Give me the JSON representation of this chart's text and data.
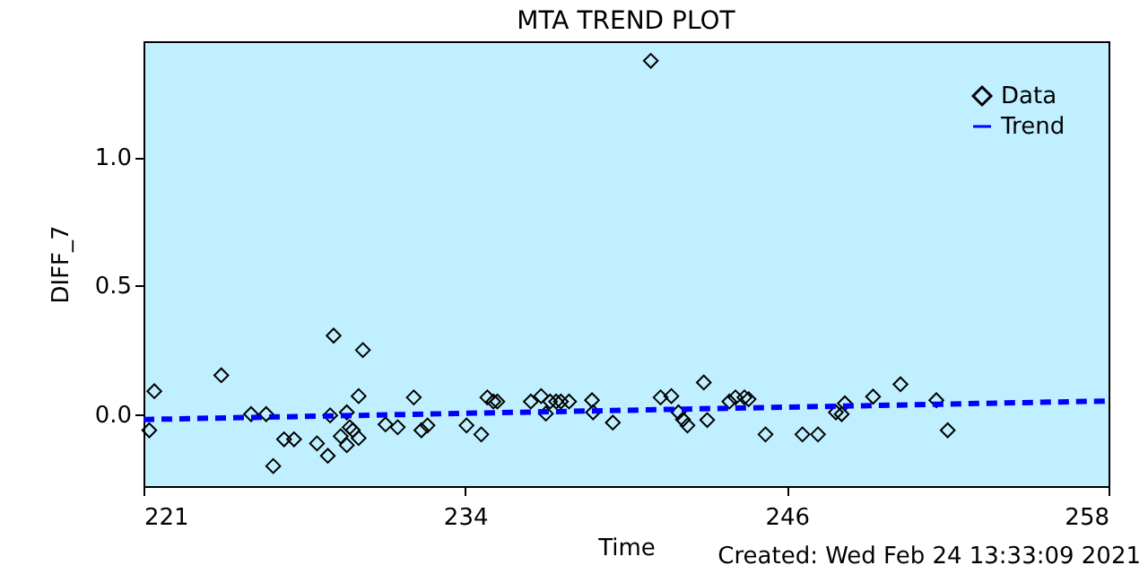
{
  "chart_data": {
    "type": "scatter",
    "title": "MTA TREND PLOT",
    "xlabel": "Time",
    "ylabel": "DIFF_7",
    "annotations": [
      "Created: Wed Feb 24 13:33:09 2021"
    ],
    "xlim": [
      221.4,
      258
    ],
    "xticks": [
      {
        "value": 221.4,
        "label": "221"
      },
      {
        "value": 233.6,
        "label": "234"
      },
      {
        "value": 245.8,
        "label": "246"
      },
      {
        "value": 258,
        "label": "258"
      }
    ],
    "ylim": [
      -0.28,
      1.45
    ],
    "yticks": [
      {
        "value": 0,
        "label": "0.0"
      },
      {
        "value": 0.5,
        "label": "0.5"
      },
      {
        "value": 1,
        "label": "1.0"
      }
    ],
    "grid": false,
    "legend": "top right",
    "series": [
      {
        "name": "Data",
        "marker": "diamond",
        "color": "#000000",
        "x": [
          221.81,
          221.62,
          224.35,
          225.48,
          226.05,
          226.73,
          227.11,
          226.32,
          227.98,
          228.39,
          228.61,
          228.48,
          228.88,
          229.11,
          229.11,
          229.22,
          229.34,
          229.56,
          229.56,
          229.72,
          230.58,
          231.04,
          231.65,
          231.94,
          232.17,
          233.65,
          234.21,
          234.44,
          234.67,
          234.82,
          236.09,
          236.48,
          236.66,
          236.82,
          237.05,
          237.23,
          237.54,
          238.41,
          238.45,
          239.2,
          240.64,
          241.01,
          241.42,
          241.69,
          241.86,
          242.03,
          242.65,
          242.78,
          243.62,
          243.85,
          244.19,
          244.35,
          244.99,
          246.39,
          246.98,
          247.66,
          247.88,
          248.0,
          249.07,
          250.11,
          251.47,
          251.9
        ],
        "values": [
          0.089,
          -0.063,
          0.151,
          0.0,
          0.0,
          -0.098,
          -0.098,
          -0.202,
          -0.114,
          -0.162,
          0.305,
          -0.005,
          -0.086,
          0.007,
          -0.121,
          -0.051,
          -0.063,
          -0.093,
          0.07,
          0.249,
          -0.04,
          -0.051,
          0.065,
          -0.063,
          -0.044,
          -0.044,
          -0.079,
          0.065,
          0.049,
          0.049,
          0.049,
          0.07,
          0.002,
          0.049,
          0.049,
          0.049,
          0.049,
          0.054,
          0.007,
          -0.033,
          1.374,
          0.065,
          0.07,
          0.007,
          -0.021,
          -0.044,
          0.123,
          -0.023,
          0.049,
          0.065,
          0.065,
          0.058,
          -0.079,
          -0.079,
          -0.079,
          0.007,
          0.0,
          0.042,
          0.068,
          0.116,
          0.054,
          -0.063
        ]
      },
      {
        "name": "Trend",
        "type": "line",
        "color": "#0000ff",
        "line_style": "dashed",
        "marker": "none",
        "x": [
          221.4,
          258
        ],
        "values": [
          -0.021,
          0.051
        ]
      }
    ]
  }
}
